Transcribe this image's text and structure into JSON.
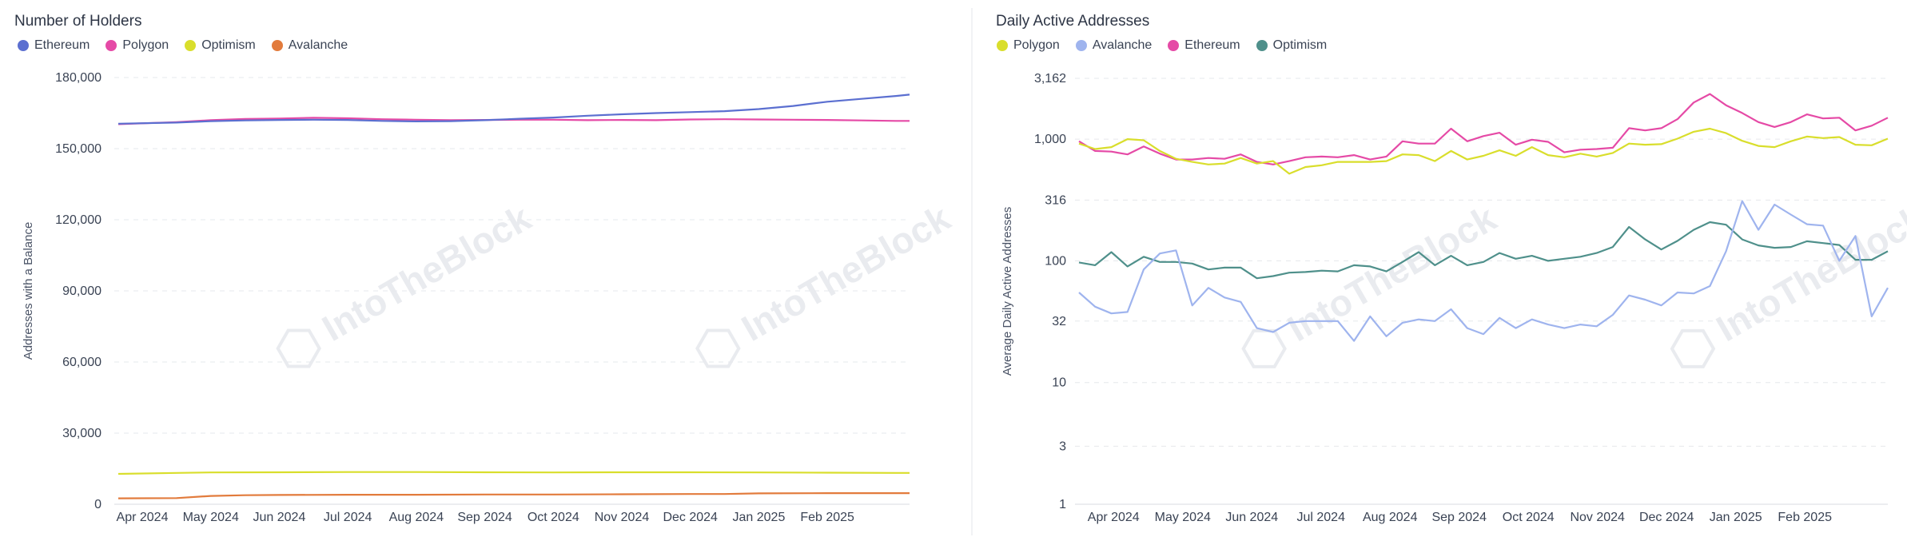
{
  "chart_data": [
    {
      "type": "line",
      "title": "Number of Holders",
      "xlabel": "",
      "ylabel": "Addresses with a Balance",
      "ylim": [
        0,
        180000
      ],
      "yticks": [
        0,
        30000,
        60000,
        90000,
        120000,
        150000,
        180000
      ],
      "ytick_labels": [
        "0",
        "30,000",
        "60,000",
        "90,000",
        "120,000",
        "150,000",
        "180,000"
      ],
      "x_tick_labels": [
        "Apr 2024",
        "May 2024",
        "Jun 2024",
        "Jul 2024",
        "Aug 2024",
        "Sep 2024",
        "Oct 2024",
        "Nov 2024",
        "Dec 2024",
        "Jan 2025",
        "Feb 2025"
      ],
      "x_range_months": [
        -0.35,
        11.2
      ],
      "grid": true,
      "legend_position": "top-left",
      "watermark": "IntoTheBlock",
      "series": [
        {
          "name": "Ethereum",
          "color": "#5b6fd0",
          "x": [
            -0.35,
            0.5,
            1.0,
            1.5,
            2.0,
            2.5,
            3.0,
            3.5,
            4.0,
            4.5,
            5.0,
            5.5,
            6.0,
            6.5,
            7.0,
            7.5,
            8.0,
            8.5,
            9.0,
            9.5,
            10.0,
            10.5,
            11.0,
            11.2
          ],
          "values": [
            160500,
            161000,
            161600,
            161900,
            162100,
            162200,
            162100,
            161700,
            161500,
            161600,
            162000,
            162600,
            163100,
            163900,
            164500,
            165000,
            165400,
            165800,
            166700,
            168000,
            169800,
            171000,
            172200,
            172800
          ]
        },
        {
          "name": "Polygon",
          "color": "#e54aa6",
          "x": [
            -0.35,
            0.5,
            1.0,
            1.5,
            2.0,
            2.5,
            3.0,
            3.5,
            4.0,
            4.5,
            5.0,
            5.5,
            6.0,
            6.5,
            7.0,
            7.5,
            8.0,
            8.5,
            9.0,
            9.5,
            10.0,
            10.5,
            11.0,
            11.2
          ],
          "values": [
            160300,
            161200,
            162000,
            162500,
            162700,
            163000,
            162800,
            162400,
            162200,
            162000,
            162100,
            162200,
            162200,
            162000,
            162100,
            162000,
            162300,
            162400,
            162300,
            162200,
            162100,
            161900,
            161700,
            161700
          ]
        },
        {
          "name": "Optimism",
          "color": "#d9de2c",
          "x": [
            -0.35,
            0.5,
            1.0,
            2.0,
            3.0,
            4.0,
            5.0,
            6.0,
            7.0,
            8.0,
            9.0,
            10.0,
            11.0,
            11.2
          ],
          "values": [
            12800,
            13200,
            13400,
            13500,
            13600,
            13600,
            13500,
            13400,
            13500,
            13500,
            13400,
            13300,
            13200,
            13200
          ]
        },
        {
          "name": "Avalanche",
          "color": "#e27b3c",
          "x": [
            -0.35,
            0.5,
            1.0,
            1.5,
            2.0,
            3.0,
            4.0,
            5.0,
            6.0,
            7.0,
            8.0,
            8.5,
            9.0,
            10.0,
            11.0,
            11.2
          ],
          "values": [
            2500,
            2600,
            3500,
            3800,
            3900,
            4000,
            4000,
            4100,
            4100,
            4200,
            4300,
            4300,
            4600,
            4700,
            4700,
            4700
          ]
        }
      ]
    },
    {
      "type": "line",
      "title": "Daily Active Addresses",
      "xlabel": "",
      "ylabel": "Average Daily Active Addresses",
      "yscale": "log",
      "ylim": [
        1,
        3162
      ],
      "yticks": [
        1,
        3,
        10,
        32,
        100,
        316,
        1000,
        3162
      ],
      "ytick_labels": [
        "1",
        "3",
        "10",
        "32",
        "100",
        "316",
        "1,000",
        "3,162"
      ],
      "x_tick_labels": [
        "Apr 2024",
        "May 2024",
        "Jun 2024",
        "Jul 2024",
        "Aug 2024",
        "Sep 2024",
        "Oct 2024",
        "Nov 2024",
        "Dec 2024",
        "Jan 2025",
        "Feb 2025"
      ],
      "x_range_months": [
        -0.5,
        11.2
      ],
      "grid": true,
      "legend_position": "top-left",
      "watermark": "IntoTheBlock",
      "series": [
        {
          "name": "Polygon",
          "color": "#d9de2c",
          "values": [
            920,
            830,
            860,
            1000,
            980,
            800,
            690,
            650,
            620,
            630,
            700,
            630,
            660,
            520,
            590,
            610,
            650,
            650,
            650,
            660,
            750,
            740,
            660,
            800,
            680,
            730,
            810,
            730,
            860,
            740,
            710,
            760,
            720,
            770,
            920,
            900,
            910,
            1010,
            1150,
            1220,
            1120,
            970,
            880,
            860,
            960,
            1050,
            1020,
            1040,
            900,
            890,
            1010
          ]
        },
        {
          "name": "Avalanche",
          "color": "#9fb4ee",
          "values": [
            55,
            42,
            37,
            38,
            85,
            115,
            122,
            43,
            60,
            50,
            46,
            28,
            26,
            31,
            32,
            32,
            32,
            22,
            35,
            24,
            31,
            33,
            32,
            40,
            28,
            25,
            34,
            28,
            33,
            30,
            28,
            30,
            29,
            36,
            52,
            48,
            43,
            55,
            54,
            62,
            120,
            310,
            180,
            290,
            240,
            200,
            195,
            100,
            160,
            35,
            60
          ]
        },
        {
          "name": "Ethereum",
          "color": "#e54aa6",
          "values": [
            960,
            800,
            790,
            750,
            870,
            760,
            680,
            680,
            700,
            690,
            750,
            650,
            620,
            660,
            710,
            720,
            710,
            740,
            680,
            720,
            960,
            920,
            920,
            1220,
            960,
            1060,
            1130,
            900,
            990,
            950,
            780,
            820,
            830,
            850,
            1230,
            1180,
            1230,
            1460,
            2000,
            2350,
            1900,
            1640,
            1380,
            1260,
            1380,
            1600,
            1480,
            1500,
            1180,
            1290,
            1500
          ]
        },
        {
          "name": "Optimism",
          "color": "#4f908b",
          "values": [
            97,
            92,
            118,
            90,
            108,
            98,
            98,
            95,
            85,
            88,
            88,
            72,
            75,
            80,
            81,
            83,
            82,
            92,
            90,
            82,
            98,
            118,
            92,
            110,
            92,
            98,
            116,
            104,
            110,
            100,
            104,
            108,
            116,
            130,
            190,
            150,
            124,
            146,
            180,
            208,
            198,
            150,
            134,
            128,
            130,
            145,
            140,
            135,
            102,
            102,
            120
          ]
        }
      ]
    }
  ]
}
